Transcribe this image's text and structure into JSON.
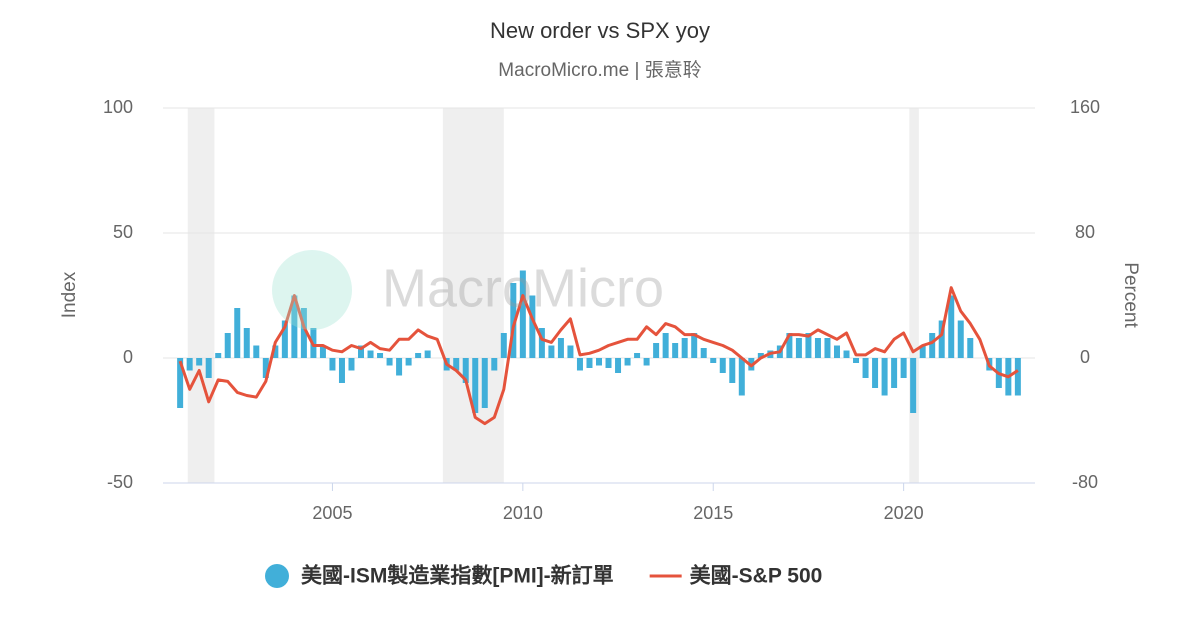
{
  "chart_data": {
    "type": "combo",
    "title": "New order vs SPX yoy",
    "subtitle": "MacroMicro.me | 張意聆",
    "watermark": "MacroMicro",
    "y_label": "Index",
    "y2_label": "Percent",
    "xlim": [
      2000.55,
      2023.45
    ],
    "xticks": [
      2005,
      2010,
      2015,
      2020
    ],
    "ylim": [
      -50,
      100
    ],
    "yticks": [
      -50,
      0,
      50,
      100
    ],
    "y2lim": [
      -80,
      160
    ],
    "y2ticks": [
      -80,
      0,
      80,
      160
    ],
    "grid": true,
    "shaded_periods": [
      [
        2001.2,
        2001.9
      ],
      [
        2007.9,
        2009.5
      ],
      [
        2020.15,
        2020.4
      ]
    ],
    "shade_color": "#efefef",
    "x": [
      2001.0,
      2001.25,
      2001.5,
      2001.75,
      2002.0,
      2002.25,
      2002.5,
      2002.75,
      2003.0,
      2003.25,
      2003.5,
      2003.75,
      2004.0,
      2004.25,
      2004.5,
      2004.75,
      2005.0,
      2005.25,
      2005.5,
      2005.75,
      2006.0,
      2006.25,
      2006.5,
      2006.75,
      2007.0,
      2007.25,
      2007.5,
      2007.75,
      2008.0,
      2008.25,
      2008.5,
      2008.75,
      2009.0,
      2009.25,
      2009.5,
      2009.75,
      2010.0,
      2010.25,
      2010.5,
      2010.75,
      2011.0,
      2011.25,
      2011.5,
      2011.75,
      2012.0,
      2012.25,
      2012.5,
      2012.75,
      2013.0,
      2013.25,
      2013.5,
      2013.75,
      2014.0,
      2014.25,
      2014.5,
      2014.75,
      2015.0,
      2015.25,
      2015.5,
      2015.75,
      2016.0,
      2016.25,
      2016.5,
      2016.75,
      2017.0,
      2017.25,
      2017.5,
      2017.75,
      2018.0,
      2018.25,
      2018.5,
      2018.75,
      2019.0,
      2019.25,
      2019.5,
      2019.75,
      2020.0,
      2020.25,
      2020.5,
      2020.75,
      2021.0,
      2021.25,
      2021.5,
      2021.75,
      2022.0,
      2022.25,
      2022.5,
      2022.75,
      2023.0
    ],
    "series": [
      {
        "name": "美國-ISM製造業指數[PMI]-新訂單",
        "type": "bar",
        "color": "#41afd9",
        "values": [
          -20,
          -5,
          -3,
          -8,
          2,
          10,
          20,
          12,
          5,
          -8,
          5,
          15,
          25,
          20,
          12,
          5,
          -5,
          -10,
          -5,
          5,
          3,
          2,
          -3,
          -7,
          -3,
          2,
          3,
          0,
          -5,
          -5,
          -10,
          -22,
          -20,
          -5,
          10,
          30,
          35,
          25,
          12,
          5,
          8,
          5,
          -5,
          -4,
          -3,
          -4,
          -6,
          -3,
          2,
          -3,
          6,
          10,
          6,
          8,
          10,
          4,
          -2,
          -6,
          -10,
          -15,
          -5,
          2,
          3,
          5,
          10,
          8,
          10,
          8,
          8,
          5,
          3,
          -2,
          -8,
          -12,
          -15,
          -12,
          -8,
          -22,
          5,
          10,
          15,
          25,
          15,
          8,
          0,
          -5,
          -12,
          -15,
          -15
        ]
      },
      {
        "name": "美國-S&P 500",
        "type": "line",
        "axis": "y2",
        "color": "#e5533c",
        "values": [
          -2,
          -20,
          -8,
          -28,
          -14,
          -15,
          -22,
          -24,
          -25,
          -15,
          10,
          20,
          40,
          20,
          8,
          8,
          5,
          4,
          8,
          6,
          10,
          6,
          5,
          12,
          12,
          18,
          14,
          12,
          -4,
          -8,
          -14,
          -38,
          -42,
          -38,
          -20,
          20,
          40,
          25,
          12,
          10,
          18,
          25,
          2,
          3,
          5,
          8,
          10,
          12,
          12,
          20,
          15,
          22,
          20,
          15,
          15,
          12,
          10,
          8,
          5,
          0,
          -5,
          0,
          3,
          4,
          15,
          15,
          14,
          18,
          15,
          12,
          16,
          2,
          2,
          6,
          4,
          12,
          16,
          4,
          8,
          10,
          15,
          45,
          30,
          22,
          12,
          -5,
          -10,
          -12,
          -8
        ]
      }
    ]
  }
}
